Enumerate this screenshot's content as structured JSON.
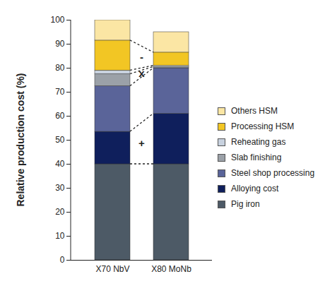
{
  "chart_data": {
    "type": "bar",
    "stacked": true,
    "categories": [
      "X70 NbV",
      "X80 MoNb"
    ],
    "ylabel": "Relative production cost (%)",
    "ylim": [
      0,
      100
    ],
    "yticks": [
      0,
      10,
      20,
      30,
      40,
      50,
      60,
      70,
      80,
      90,
      100
    ],
    "legend": "right",
    "series": [
      {
        "name": "Pig iron",
        "color": "#4d5a66",
        "values": [
          40,
          40
        ]
      },
      {
        "name": "Alloying cost",
        "color": "#0f1f5c",
        "values": [
          13.5,
          21
        ]
      },
      {
        "name": "Steel shop processing",
        "color": "#5a6499",
        "values": [
          19,
          19
        ]
      },
      {
        "name": "Slab finishing",
        "color": "#9ba1a8",
        "values": [
          5,
          0.5
        ]
      },
      {
        "name": "Reheating gas",
        "color": "#c8d2df",
        "values": [
          1.5,
          0.5
        ]
      },
      {
        "name": "Processing HSM",
        "color": "#f2c624",
        "values": [
          12.5,
          5.5
        ]
      },
      {
        "name": "Others HSM",
        "color": "#fbe6a4",
        "values": [
          8.5,
          8.5
        ]
      }
    ],
    "annotations": [
      {
        "text": "-",
        "series": "Processing HSM"
      },
      {
        "text": "x",
        "series": "Slab finishing"
      },
      {
        "text": "+",
        "series": "Alloying cost"
      }
    ]
  }
}
